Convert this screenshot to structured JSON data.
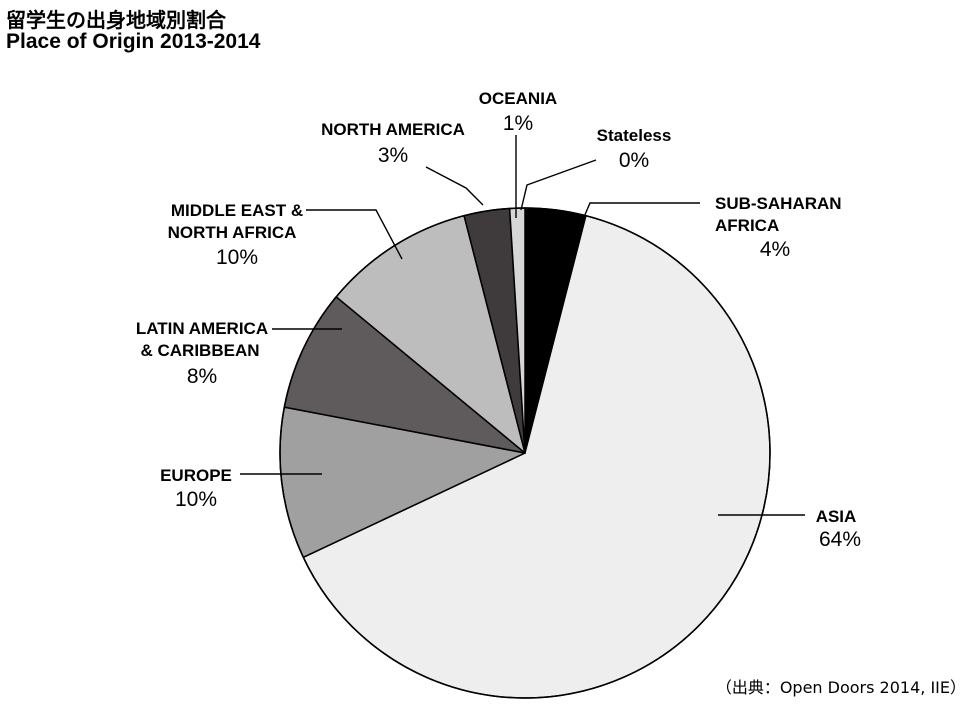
{
  "title": {
    "jp": "留学生の出身地域別割合",
    "en": "Place of Origin 2013-2014"
  },
  "source": "（出典：Open Doors 2014, IIE）",
  "chart_data": {
    "type": "pie",
    "title": "Place of Origin 2013-2014",
    "slices": [
      {
        "label": [
          "SUB-SAHARAN",
          "AFRICA"
        ],
        "value": 4,
        "pct_label": "4%",
        "color": "#000000"
      },
      {
        "label": [
          "ASIA"
        ],
        "value": 64,
        "pct_label": "64%",
        "color": "#eeeeee"
      },
      {
        "label": [
          "EUROPE"
        ],
        "value": 10,
        "pct_label": "10%",
        "color": "#a0a0a0"
      },
      {
        "label": [
          "LATIN AMERICA",
          "& CARIBBEAN"
        ],
        "value": 8,
        "pct_label": "8%",
        "color": "#5f5a5b"
      },
      {
        "label": [
          "MIDDLE EAST &",
          "NORTH AFRICA"
        ],
        "value": 10,
        "pct_label": "10%",
        "color": "#bdbdbd"
      },
      {
        "label": [
          "NORTH AMERICA"
        ],
        "value": 3,
        "pct_label": "3%",
        "color": "#3f3a3b"
      },
      {
        "label": [
          "OCEANIA"
        ],
        "value": 1,
        "pct_label": "1%",
        "color": "#d6d6d6"
      },
      {
        "label": [
          "Stateless"
        ],
        "value": 0,
        "pct_label": "0%",
        "color": "#ffffff"
      }
    ]
  }
}
